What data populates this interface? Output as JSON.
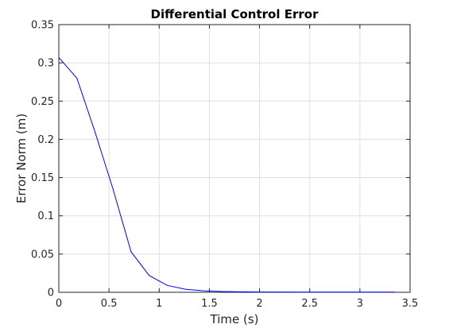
{
  "chart_data": {
    "type": "line",
    "title": "Differential Control Error",
    "xlabel": "Time (s)",
    "ylabel": "Error Norm (m)",
    "xlim": [
      0,
      3.5
    ],
    "ylim": [
      0,
      0.35
    ],
    "xticks": [
      0,
      0.5,
      1,
      1.5,
      2,
      2.5,
      3,
      3.5
    ],
    "xtick_labels": [
      "0",
      "0.5",
      "1",
      "1.5",
      "2",
      "2.5",
      "3",
      "3.5"
    ],
    "yticks": [
      0,
      0.05,
      0.1,
      0.15,
      0.2,
      0.25,
      0.3,
      0.35
    ],
    "ytick_labels": [
      "0",
      "0.05",
      "0.1",
      "0.15",
      "0.2",
      "0.25",
      "0.3",
      "0.35"
    ],
    "grid": true,
    "series": [
      {
        "color": "#0000ff",
        "x": [
          0,
          0.18,
          0.36,
          0.54,
          0.72,
          0.9,
          1.08,
          1.26,
          1.44,
          1.62,
          1.8,
          2.0,
          2.5,
          3.0,
          3.35
        ],
        "y": [
          0.307,
          0.28,
          0.21,
          0.135,
          0.053,
          0.022,
          0.009,
          0.004,
          0.002,
          0.001,
          0.0006,
          0.0004,
          0.0003,
          0.0002,
          0.0002
        ]
      }
    ]
  }
}
